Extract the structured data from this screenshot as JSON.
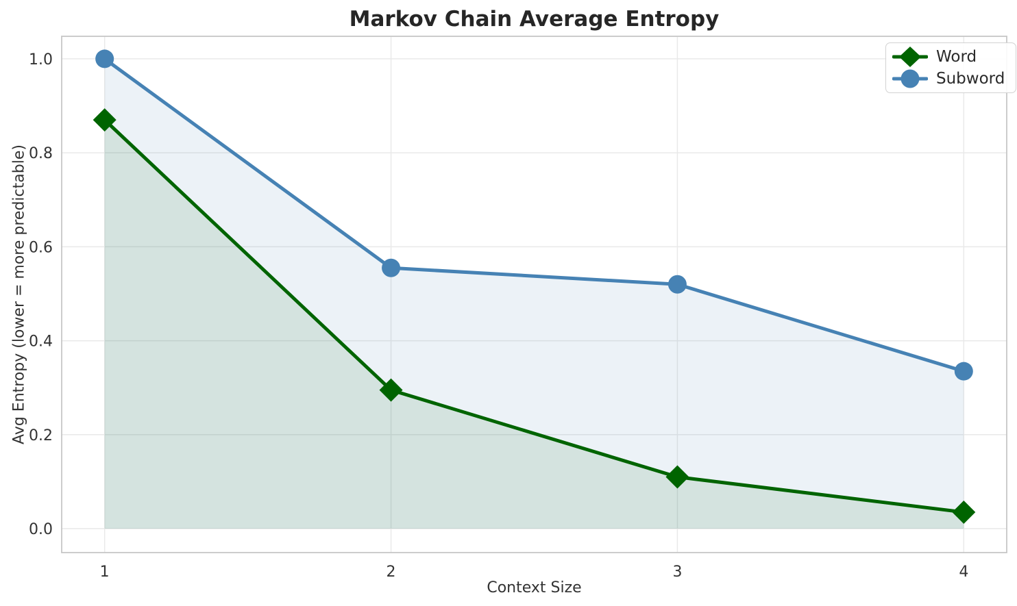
{
  "chart_data": {
    "type": "line",
    "title": "Markov Chain Average Entropy",
    "xlabel": "Context Size",
    "ylabel": "Avg Entropy (lower = more predictable)",
    "x": [
      1,
      2,
      3,
      4
    ],
    "series": [
      {
        "name": "Word",
        "color": "#006400",
        "marker": "diamond",
        "values": [
          0.87,
          0.295,
          0.11,
          0.035
        ],
        "fill_to": 0,
        "fill_opacity": 0.1
      },
      {
        "name": "Subword",
        "color": "#4682b4",
        "marker": "circle",
        "values": [
          1.0,
          0.555,
          0.52,
          0.335
        ],
        "fill_to": 0,
        "fill_opacity": 0.1
      }
    ],
    "xlim": [
      0.85,
      4.15
    ],
    "ylim": [
      -0.051,
      1.048
    ],
    "xticks": {
      "values": [
        1,
        2,
        3,
        4
      ],
      "labels": [
        "1",
        "2",
        "3",
        "4"
      ]
    },
    "yticks": {
      "values": [
        0.0,
        0.2,
        0.4,
        0.6,
        0.8,
        1.0
      ],
      "labels": [
        "0.0",
        "0.2",
        "0.4",
        "0.6",
        "0.8",
        "1.0"
      ]
    },
    "grid": true,
    "legend_position": "upper right",
    "colors": {
      "grid": "#e9e9e9",
      "spine": "#c6c6c6",
      "tick_text": "#333333",
      "title_text": "#262626"
    }
  }
}
